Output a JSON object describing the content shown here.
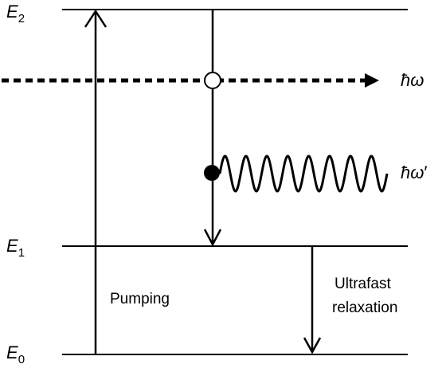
{
  "levels": {
    "e2": {
      "base": "E",
      "sub": "2"
    },
    "e1": {
      "base": "E",
      "sub": "1"
    },
    "e0": {
      "base": "E",
      "sub": "0"
    }
  },
  "photons": {
    "stimulating": {
      "symbol": "ħω",
      "prime": ""
    },
    "emitted": {
      "symbol": "ħω",
      "prime": "′"
    }
  },
  "processes": {
    "pumping": "Pumping",
    "relaxation_line1": "Ultrafast",
    "relaxation_line2": "relaxation"
  }
}
